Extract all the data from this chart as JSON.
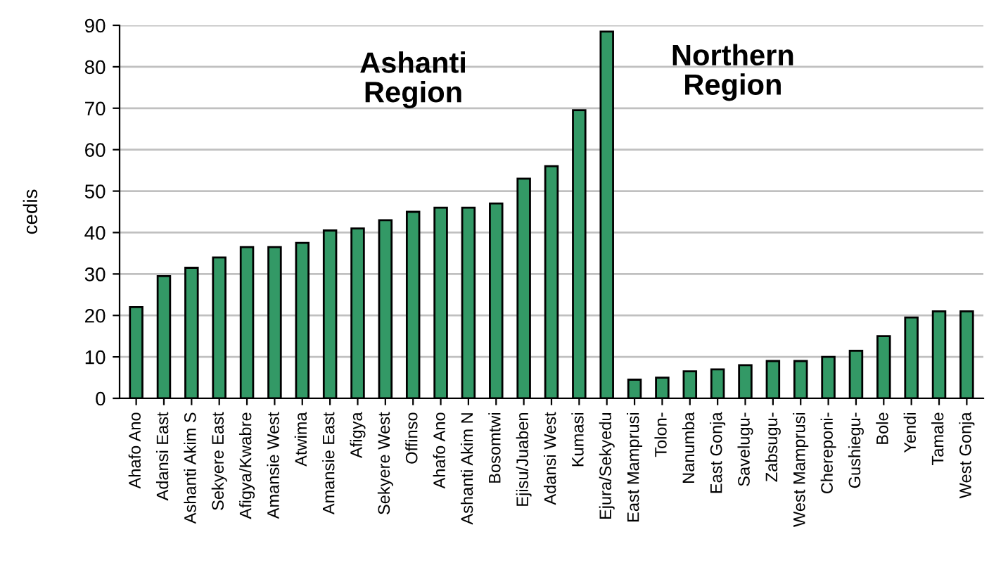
{
  "chart_data": {
    "type": "bar",
    "ylabel": "cedis",
    "categories": [
      "Ahafo Ano",
      "Adansi East",
      "Ashanti Akim S",
      "Sekyere East",
      "Afigya/Kwabre",
      "Amansie West",
      "Atwima",
      "Amansie East",
      "Afigya",
      "Sekyere West",
      "Offinso",
      "Ahafo Ano",
      "Ashanti Akim N",
      "Bosomtwi",
      "Ejisu/Juaben",
      "Adansi West",
      "Kumasi",
      "Ejura/Sekyedu",
      "East Mamprusi",
      "Tolon-",
      "Nanumba",
      "East Gonja",
      "Savelugu-",
      "Zabsugu-",
      "West Mamprusi",
      "Chereponi-",
      "Gushiegu-",
      "Bole",
      "Yendi",
      "Tamale",
      "West Gonja"
    ],
    "values": [
      22,
      29.5,
      31.5,
      34,
      36.5,
      36.5,
      37.5,
      40.5,
      41,
      43,
      45,
      46,
      46,
      47,
      53,
      56,
      69.5,
      88.5,
      4.5,
      5,
      6.5,
      7,
      8,
      9,
      9,
      10,
      11.5,
      15,
      19.5,
      21,
      21
    ],
    "color": "#339966",
    "ylim": [
      0,
      90
    ],
    "yticks": [
      0,
      10,
      20,
      30,
      40,
      50,
      60,
      70,
      80,
      90
    ],
    "grid": "y",
    "annotations": [
      "Ashanti\nRegion",
      "Northern\nRegion"
    ]
  }
}
